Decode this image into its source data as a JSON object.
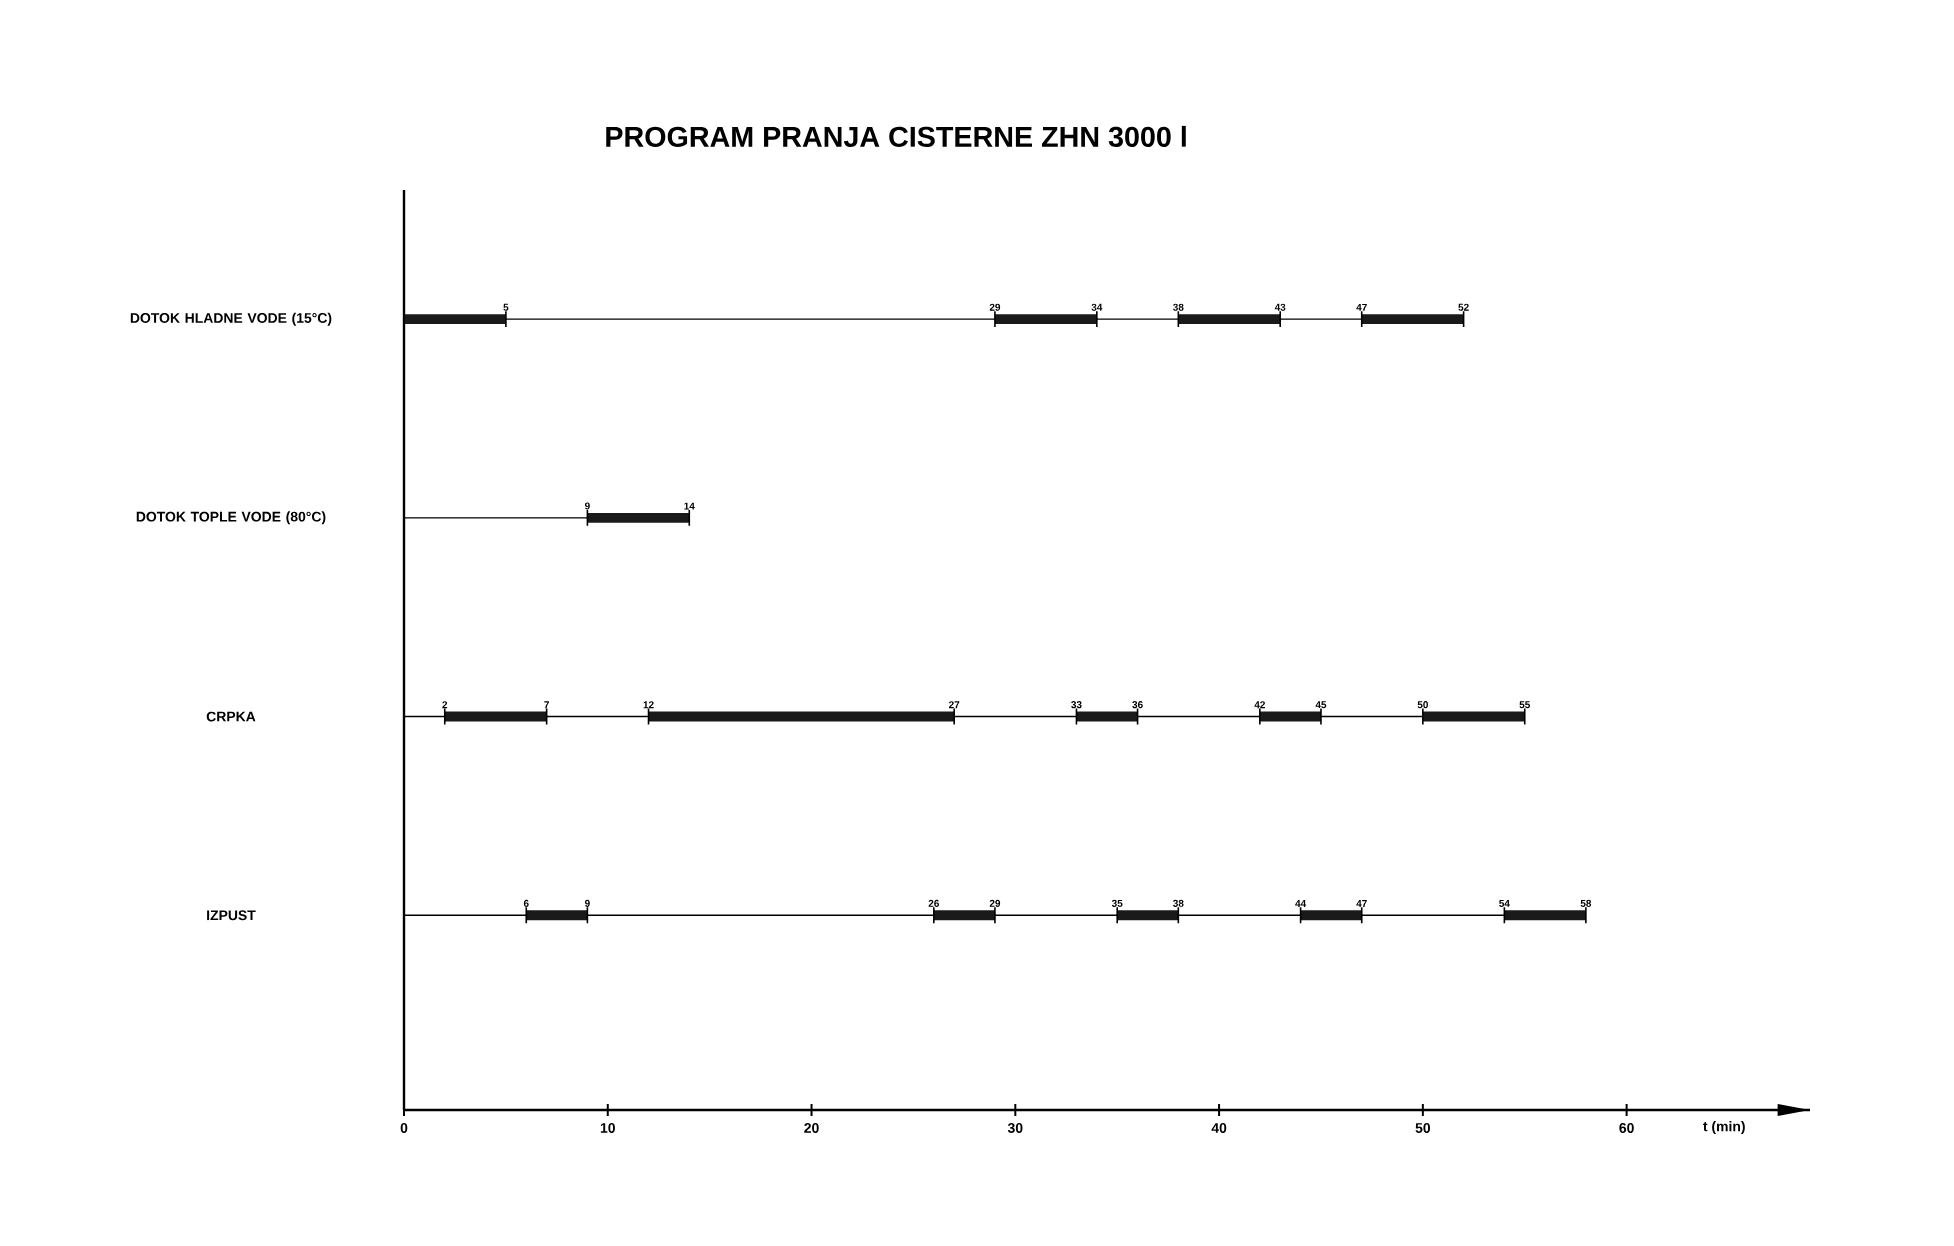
{
  "chart_data": {
    "type": "bar",
    "orientation": "horizontal",
    "title": "PROGRAM PRANJA CISTERNE ZHN 3000 l",
    "xlabel": "t (min)",
    "categories": [
      "DOTOK HLADNE VODE (15°C)",
      "DOTOK TOPLE VODE (80°C)",
      "CRPKA",
      "IZPUST"
    ],
    "series": [
      {
        "color": "#1a1a1a",
        "base": [
          0,
          9,
          2,
          6
        ],
        "values": [
          5,
          5,
          5,
          3
        ]
      },
      {
        "color": "#1a1a1a",
        "base": [
          29,
          null,
          12,
          26
        ],
        "values": [
          5,
          null,
          15,
          3
        ]
      },
      {
        "color": "#1a1a1a",
        "base": [
          38,
          null,
          33,
          35
        ],
        "values": [
          5,
          null,
          3,
          3
        ]
      },
      {
        "color": "#1a1a1a",
        "base": [
          47,
          null,
          42,
          44
        ],
        "values": [
          5,
          null,
          3,
          3
        ]
      },
      {
        "color": "#1a1a1a",
        "base": [
          null,
          null,
          50,
          54
        ],
        "values": [
          null,
          null,
          5,
          4
        ]
      }
    ],
    "grid": "y",
    "xlim": [
      0,
      69
    ],
    "xticks": [
      0,
      10,
      20,
      30,
      40,
      50,
      60
    ],
    "annotations": [
      {
        "text": "5",
        "x": 5,
        "y": "DOTOK HLADNE VODE (15°C)"
      },
      {
        "text": "29",
        "x": 29,
        "y": "DOTOK HLADNE VODE (15°C)"
      },
      {
        "text": "34",
        "x": 34,
        "y": "DOTOK HLADNE VODE (15°C)"
      },
      {
        "text": "38",
        "x": 38,
        "y": "DOTOK HLADNE VODE (15°C)"
      },
      {
        "text": "43",
        "x": 43,
        "y": "DOTOK HLADNE VODE (15°C)"
      },
      {
        "text": "47",
        "x": 47,
        "y": "DOTOK HLADNE VODE (15°C)"
      },
      {
        "text": "52",
        "x": 52,
        "y": "DOTOK HLADNE VODE (15°C)"
      },
      {
        "text": "9",
        "x": 9,
        "y": "DOTOK TOPLE VODE (80°C)"
      },
      {
        "text": "14",
        "x": 14,
        "y": "DOTOK TOPLE VODE (80°C)"
      },
      {
        "text": "2",
        "x": 2,
        "y": "CRPKA"
      },
      {
        "text": "7",
        "x": 7,
        "y": "CRPKA"
      },
      {
        "text": "12",
        "x": 12,
        "y": "CRPKA"
      },
      {
        "text": "27",
        "x": 27,
        "y": "CRPKA"
      },
      {
        "text": "33",
        "x": 33,
        "y": "CRPKA"
      },
      {
        "text": "36",
        "x": 36,
        "y": "CRPKA"
      },
      {
        "text": "42",
        "x": 42,
        "y": "CRPKA"
      },
      {
        "text": "45",
        "x": 45,
        "y": "CRPKA"
      },
      {
        "text": "50",
        "x": 50,
        "y": "CRPKA"
      },
      {
        "text": "55",
        "x": 55,
        "y": "CRPKA"
      },
      {
        "text": "6",
        "x": 6,
        "y": "IZPUST"
      },
      {
        "text": "9",
        "x": 9,
        "y": "IZPUST"
      },
      {
        "text": "26",
        "x": 26,
        "y": "IZPUST"
      },
      {
        "text": "29",
        "x": 29,
        "y": "IZPUST"
      },
      {
        "text": "35",
        "x": 35,
        "y": "IZPUST"
      },
      {
        "text": "38",
        "x": 38,
        "y": "IZPUST"
      },
      {
        "text": "44",
        "x": 44,
        "y": "IZPUST"
      },
      {
        "text": "47",
        "x": 47,
        "y": "IZPUST"
      },
      {
        "text": "54",
        "x": 54,
        "y": "IZPUST"
      },
      {
        "text": "58",
        "x": 58,
        "y": "IZPUST"
      }
    ]
  }
}
